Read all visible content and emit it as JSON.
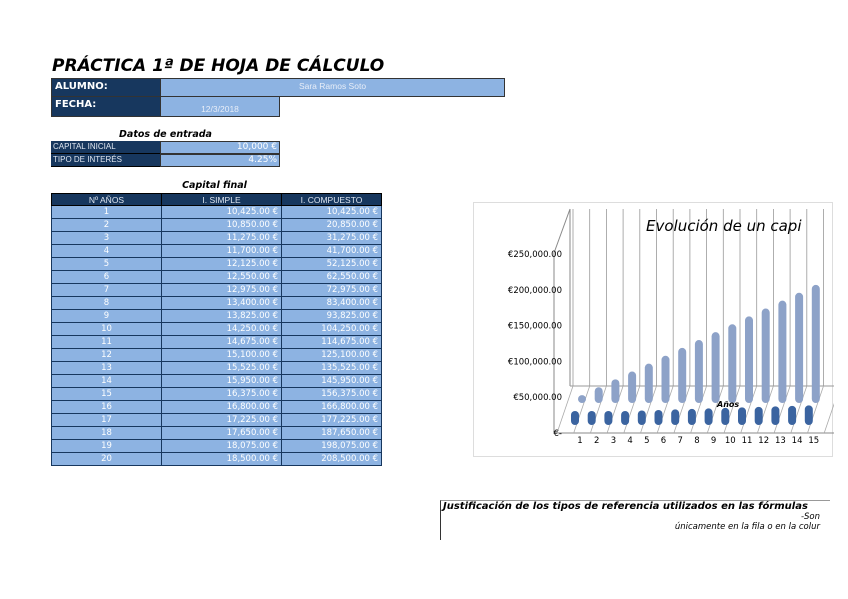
{
  "title": "PRÁCTICA 1ª DE HOJA DE CÁLCULO",
  "alumno": {
    "label": "ALUMNO:",
    "value": "Sara Ramos Soto"
  },
  "fecha": {
    "label": "FECHA:",
    "value": "12/3/2018"
  },
  "datos": {
    "title": "Datos de entrada",
    "capital_label": "CAPITAL INICIAL",
    "capital_value": "10,000 €",
    "interes_label": "TIPO DE INTERÉS",
    "interes_value": "4.25%"
  },
  "tabla": {
    "title": "Capital final",
    "headers": [
      "Nº AÑOS",
      "I. SIMPLE",
      "I. COMPUESTO"
    ],
    "rows": [
      [
        "1",
        "10,425.00 €",
        "10,425.00 €"
      ],
      [
        "2",
        "10,850.00 €",
        "20,850.00 €"
      ],
      [
        "3",
        "11,275.00 €",
        "31,275.00 €"
      ],
      [
        "4",
        "11,700.00 €",
        "41,700.00 €"
      ],
      [
        "5",
        "12,125.00 €",
        "52,125.00 €"
      ],
      [
        "6",
        "12,550.00 €",
        "62,550.00 €"
      ],
      [
        "7",
        "12,975.00 €",
        "72,975.00 €"
      ],
      [
        "8",
        "13,400.00 €",
        "83,400.00 €"
      ],
      [
        "9",
        "13,825.00 €",
        "93,825.00 €"
      ],
      [
        "10",
        "14,250.00 €",
        "104,250.00 €"
      ],
      [
        "11",
        "14,675.00 €",
        "114,675.00 €"
      ],
      [
        "12",
        "15,100.00 €",
        "125,100.00 €"
      ],
      [
        "13",
        "15,525.00 €",
        "135,525.00 €"
      ],
      [
        "14",
        "15,950.00 €",
        "145,950.00 €"
      ],
      [
        "15",
        "16,375.00 €",
        "156,375.00 €"
      ],
      [
        "16",
        "16,800.00 €",
        "166,800.00 €"
      ],
      [
        "17",
        "17,225.00 €",
        "177,225.00 €"
      ],
      [
        "18",
        "17,650.00 €",
        "187,650.00 €"
      ],
      [
        "19",
        "18,075.00 €",
        "198,075.00 €"
      ],
      [
        "20",
        "18,500.00 €",
        "208,500.00 €"
      ]
    ]
  },
  "chart_data": {
    "type": "bar",
    "subtype": "3d-column",
    "title": "Evolución de un capi",
    "xlabel": "Años",
    "categories": [
      1,
      2,
      3,
      4,
      5,
      6,
      7,
      8,
      9,
      10,
      11,
      12,
      13,
      14,
      15
    ],
    "series": [
      {
        "values": [
          10425,
          10850,
          11275,
          11700,
          12125,
          12550,
          12975,
          13400,
          13825,
          14250,
          14675,
          15100,
          15525,
          15950,
          16375
        ],
        "color": "#3b64a0"
      },
      {
        "values": [
          10425,
          20850,
          31275,
          41700,
          52125,
          62550,
          72975,
          83400,
          93825,
          104250,
          114675,
          125100,
          135525,
          145950,
          156375
        ],
        "color": "#8da2c8"
      }
    ],
    "yticks": [
      "€-",
      "€50,000.00",
      "€100,000.00",
      "€150,000.00",
      "€200,000.00",
      "€250,000.00"
    ],
    "ylim": [
      0,
      250000
    ],
    "grid": true
  },
  "justificacion": {
    "title": "Justificación de los tipos de referencia utilizados  en las fórmulas",
    "line1": "-Son",
    "line2": "únicamente en la fila o en la colur"
  }
}
